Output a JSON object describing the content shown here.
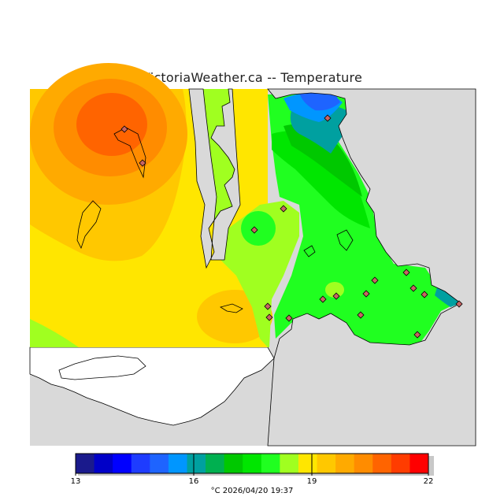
{
  "title": "VictoriaWeather.ca -- Temperature",
  "legend": {
    "ticks": [
      "13",
      "16",
      "19",
      "22"
    ],
    "caption": "°C  2026/04/20 19:37",
    "colors": [
      "#1a1a8c",
      "#0000c8",
      "#0000ff",
      "#1e3cff",
      "#1e64ff",
      "#0096ff",
      "#00a0a0",
      "#00b050",
      "#00c800",
      "#00e600",
      "#20ff20",
      "#a0ff20",
      "#ffe600",
      "#ffc800",
      "#ffaa00",
      "#ff8c00",
      "#ff6400",
      "#ff3c00",
      "#ff0000"
    ]
  },
  "map": {
    "land_outside": "#d9d9d9",
    "no_data": "#ffffff",
    "station_count": 18
  }
}
